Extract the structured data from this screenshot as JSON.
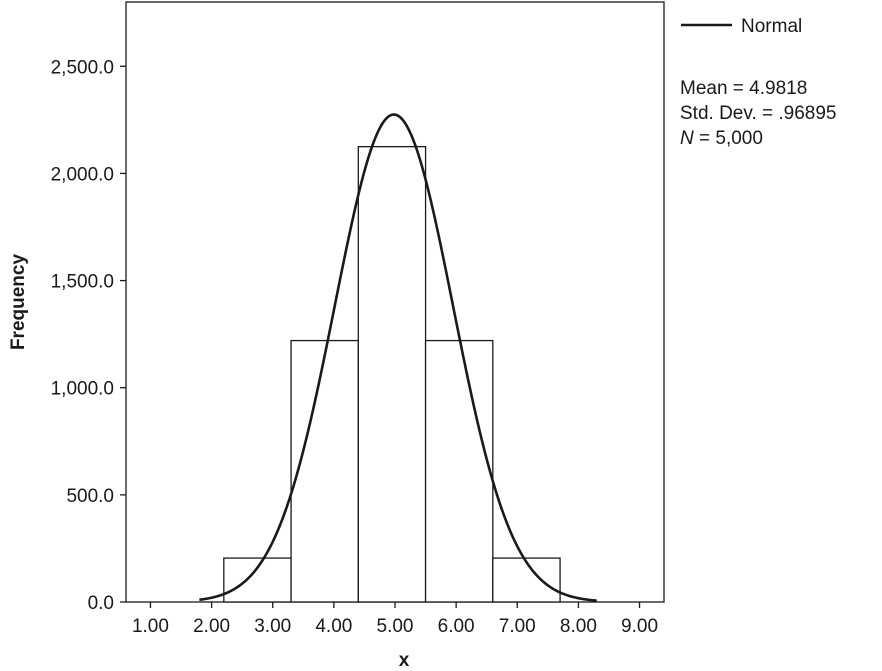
{
  "chart_data": {
    "type": "bar",
    "xlabel": "x",
    "ylabel": "Frequency",
    "xlim": [
      0.6,
      9.4
    ],
    "ylim": [
      0,
      2800
    ],
    "x_ticks": [
      "1.00",
      "2.00",
      "3.00",
      "4.00",
      "5.00",
      "6.00",
      "7.00",
      "8.00",
      "9.00"
    ],
    "x_tick_values": [
      1,
      2,
      3,
      4,
      5,
      6,
      7,
      8,
      9
    ],
    "y_ticks": [
      "0.0",
      "500.0",
      "1,000.0",
      "1,500.0",
      "2,000.0",
      "2,500.0"
    ],
    "y_tick_values": [
      0,
      500,
      1000,
      1500,
      2000,
      2500
    ],
    "bins": [
      {
        "start": 2.2,
        "end": 3.3,
        "value": 205
      },
      {
        "start": 3.3,
        "end": 4.4,
        "value": 1220
      },
      {
        "start": 4.4,
        "end": 5.5,
        "value": 2125
      },
      {
        "start": 5.5,
        "end": 6.6,
        "value": 1220
      },
      {
        "start": 6.6,
        "end": 7.7,
        "value": 205
      }
    ],
    "normal_curve": {
      "name": "Normal",
      "mean": 4.9818,
      "sd": 0.96895,
      "peak": 2275
    },
    "legend": {
      "label": "Normal",
      "position": "top-right, outside plot"
    },
    "stats": {
      "mean": "Mean = 4.9818",
      "sd": "Std. Dev. = .96895",
      "n_symbol": "N",
      "n_value": " = 5,000"
    },
    "colors": {
      "line": "#1a1a1a",
      "background": "#ffffff"
    }
  }
}
